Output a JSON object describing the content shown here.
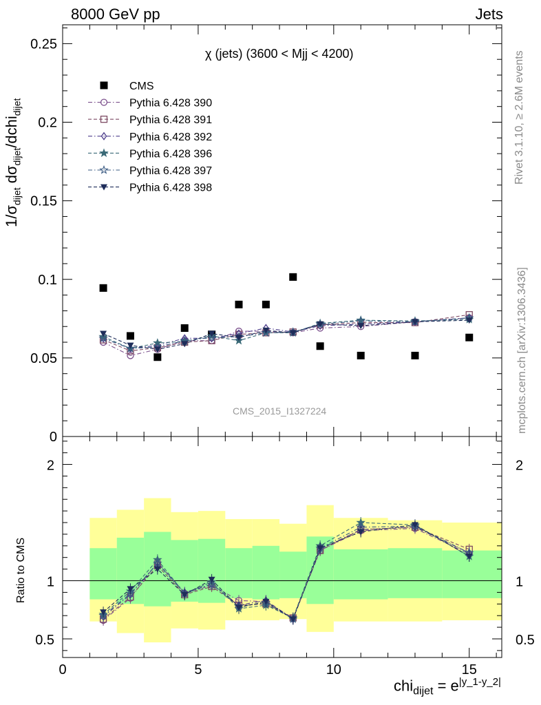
{
  "header": {
    "left": "8000 GeV pp",
    "right": "Jets"
  },
  "side_text": {
    "rivet": "Rivet 3.1.10, ≥ 2.6M events",
    "mcplots": "mcplots.cern.ch [arXiv:1306.3436]"
  },
  "analysis_id": "CMS_2015_I1327224",
  "colors": {
    "data": "#000000",
    "p390": "#7b4f8c",
    "p391": "#7d4a63",
    "p392": "#4b3b8a",
    "p396": "#3a6a77",
    "p397": "#3b5b83",
    "p398": "#1f2d5a",
    "band_inner": "#99ff99",
    "band_outer": "#ffff99"
  },
  "chart_data": [
    {
      "type": "scatter",
      "title": "χ (jets) (3600 < Mjj < 4200)",
      "xlabel_main": "chi",
      "xlabel_sub": "dijet",
      "xlabel_eq": " = e",
      "xlabel_sup": "|y_1-y_2|",
      "ylabel": "1/σdijet dσdijet/dchidijet",
      "xlim": [
        0,
        16.2
      ],
      "ylim": [
        0,
        0.262
      ],
      "x_ticks": [
        "0",
        "5",
        "10",
        "15"
      ],
      "y_ticks": [
        "0",
        "0.05",
        "0.1",
        "0.15",
        "0.2",
        "0.25"
      ],
      "x": [
        1.5,
        2.5,
        3.5,
        4.5,
        5.5,
        6.5,
        7.5,
        8.5,
        9.5,
        11,
        13,
        15
      ],
      "series": [
        {
          "name": "CMS",
          "marker": "square-filled",
          "color_key": "data",
          "values": [
            0.0945,
            0.064,
            0.0505,
            0.069,
            0.065,
            0.084,
            0.084,
            0.1015,
            0.0575,
            0.0515,
            0.0515,
            0.063
          ]
        },
        {
          "name": "Pythia 6.428 390",
          "marker": "circle-open",
          "color_key": "p390",
          "values": [
            0.06,
            0.0515,
            0.0555,
            0.061,
            0.061,
            0.067,
            0.067,
            0.066,
            0.069,
            0.07,
            0.073,
            0.0755
          ]
        },
        {
          "name": "Pythia 6.428 391",
          "marker": "square-open",
          "color_key": "p391",
          "values": [
            0.0615,
            0.0545,
            0.0565,
            0.06,
            0.061,
            0.065,
            0.066,
            0.0665,
            0.071,
            0.0725,
            0.0725,
            0.0775
          ]
        },
        {
          "name": "Pythia 6.428 392",
          "marker": "diamond-open",
          "color_key": "p392",
          "values": [
            0.0625,
            0.056,
            0.058,
            0.0625,
            0.0625,
            0.0655,
            0.069,
            0.0665,
            0.0705,
            0.0715,
            0.073,
            0.0755
          ]
        },
        {
          "name": "Pythia 6.428 396",
          "marker": "star-filled",
          "color_key": "p396",
          "values": [
            0.0635,
            0.056,
            0.0595,
            0.0605,
            0.064,
            0.061,
            0.066,
            0.066,
            0.072,
            0.074,
            0.0735,
            0.0745
          ]
        },
        {
          "name": "Pythia 6.428 397",
          "marker": "star-open",
          "color_key": "p397",
          "values": [
            0.0625,
            0.056,
            0.057,
            0.061,
            0.063,
            0.0635,
            0.066,
            0.0665,
            0.0715,
            0.0735,
            0.073,
            0.0755
          ]
        },
        {
          "name": "Pythia 6.428 398",
          "marker": "triangle-down-filled",
          "color_key": "p398",
          "values": [
            0.0655,
            0.058,
            0.0555,
            0.059,
            0.0655,
            0.063,
            0.0675,
            0.066,
            0.0715,
            0.0705,
            0.073,
            0.074
          ]
        }
      ]
    },
    {
      "type": "line",
      "ylabel": "Ratio to CMS",
      "xlim": [
        0,
        16.2
      ],
      "ylim": [
        0.34,
        2.24
      ],
      "y_ticks": [
        "0.5",
        "1",
        "2"
      ],
      "bin_edges": [
        1,
        2,
        3,
        4,
        5,
        6,
        7,
        8,
        9,
        10,
        12,
        14,
        16.2
      ],
      "band_inner": [
        [
          0.84,
          1.28
        ],
        [
          0.8,
          1.37
        ],
        [
          0.78,
          1.42
        ],
        [
          0.82,
          1.35
        ],
        [
          0.81,
          1.36
        ],
        [
          0.85,
          1.28
        ],
        [
          0.84,
          1.3
        ],
        [
          0.85,
          1.25
        ],
        [
          0.8,
          1.38
        ],
        [
          0.84,
          1.27
        ],
        [
          0.85,
          1.28
        ],
        [
          0.85,
          1.26
        ]
      ],
      "band_outer": [
        [
          0.65,
          1.54
        ],
        [
          0.55,
          1.61
        ],
        [
          0.47,
          1.71
        ],
        [
          0.59,
          1.59
        ],
        [
          0.58,
          1.6
        ],
        [
          0.66,
          1.53
        ],
        [
          0.66,
          1.53
        ],
        [
          0.67,
          1.49
        ],
        [
          0.56,
          1.65
        ],
        [
          0.65,
          1.54
        ],
        [
          0.65,
          1.52
        ],
        [
          0.66,
          1.5
        ]
      ],
      "reference": 1,
      "series": [
        {
          "name": "Pythia 6.428 390",
          "color_key": "p390",
          "values": [
            0.66,
            0.85,
            1.16,
            0.89,
            0.96,
            0.83,
            0.82,
            0.68,
            1.26,
            1.43,
            1.45,
            1.23
          ]
        },
        {
          "name": "Pythia 6.428 391",
          "color_key": "p391",
          "values": [
            0.67,
            0.86,
            1.13,
            0.88,
            0.95,
            0.79,
            0.8,
            0.68,
            1.26,
            1.44,
            1.46,
            1.27
          ]
        },
        {
          "name": "Pythia 6.428 392",
          "color_key": "p392",
          "values": [
            0.69,
            0.88,
            1.15,
            0.9,
            0.97,
            0.79,
            0.83,
            0.67,
            1.27,
            1.44,
            1.46,
            1.24
          ]
        },
        {
          "name": "Pythia 6.428 396",
          "color_key": "p396",
          "values": [
            0.71,
            0.91,
            1.18,
            0.89,
            0.99,
            0.76,
            0.79,
            0.68,
            1.3,
            1.5,
            1.48,
            1.21
          ]
        },
        {
          "name": "Pythia 6.428 397",
          "color_key": "p397",
          "values": [
            0.7,
            0.89,
            1.15,
            0.89,
            0.97,
            0.78,
            0.81,
            0.67,
            1.28,
            1.46,
            1.47,
            1.24
          ]
        },
        {
          "name": "Pythia 6.428 398",
          "color_key": "p398",
          "values": [
            0.73,
            0.93,
            1.1,
            0.88,
            1.01,
            0.77,
            0.82,
            0.67,
            1.28,
            1.42,
            1.48,
            1.21
          ]
        }
      ]
    }
  ]
}
